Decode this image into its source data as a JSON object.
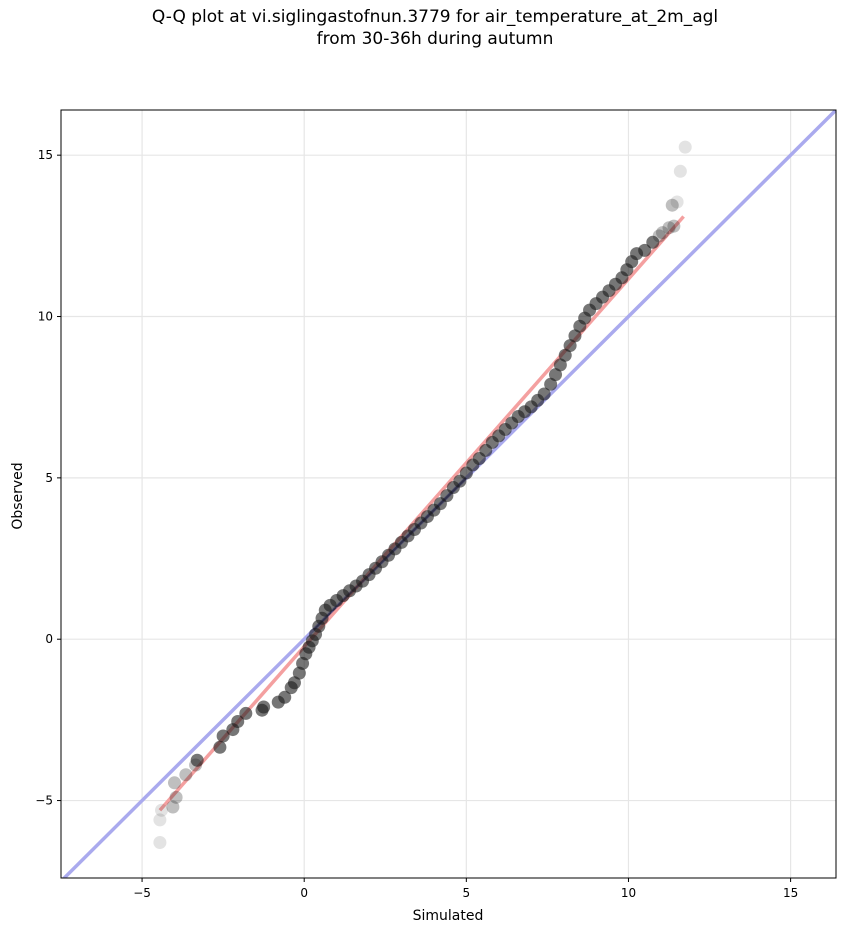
{
  "chart_data": {
    "type": "scatter",
    "title_line1": "Q-Q plot at vi.siglingastofnun.3779 for air_temperature_at_2m_agl",
    "title_line2": "from 30-36h during autumn",
    "xlabel": "Simulated",
    "ylabel": "Observed",
    "xlim": [
      -7.5,
      16.4
    ],
    "ylim": [
      -7.4,
      16.4
    ],
    "xticks": [
      -5,
      0,
      5,
      10,
      15
    ],
    "yticks": [
      -5,
      0,
      5,
      10,
      15
    ],
    "xtick_labels": [
      "−5",
      "0",
      "5",
      "10",
      "15"
    ],
    "ytick_labels": [
      "−5",
      "0",
      "5",
      "10",
      "15"
    ],
    "grid": true,
    "colors": {
      "points": "#1a1a1a",
      "identity_line": "#aaaaee",
      "fit_line": "#f4a0a0",
      "dense_core": "#1a1a5a"
    },
    "identity_line": {
      "name": "identity",
      "x": [
        -7.5,
        16.4
      ],
      "y": [
        -7.5,
        16.4
      ]
    },
    "fit_line": {
      "name": "fit",
      "x": [
        -4.45,
        11.7
      ],
      "y": [
        -5.3,
        13.1
      ]
    },
    "points": [
      [
        -4.45,
        -6.3
      ],
      [
        -4.45,
        -5.6
      ],
      [
        -4.4,
        -5.3
      ],
      [
        -4.05,
        -5.2
      ],
      [
        -3.95,
        -4.9
      ],
      [
        -4.0,
        -4.45
      ],
      [
        -3.65,
        -4.2
      ],
      [
        -3.35,
        -3.9
      ],
      [
        -3.3,
        -3.75
      ],
      [
        -2.6,
        -3.35
      ],
      [
        -2.5,
        -3.0
      ],
      [
        -2.2,
        -2.8
      ],
      [
        -2.05,
        -2.55
      ],
      [
        -1.8,
        -2.3
      ],
      [
        -1.3,
        -2.2
      ],
      [
        -1.25,
        -2.1
      ],
      [
        -0.8,
        -1.95
      ],
      [
        -0.6,
        -1.8
      ],
      [
        -0.4,
        -1.5
      ],
      [
        -0.3,
        -1.35
      ],
      [
        -0.15,
        -1.05
      ],
      [
        -0.05,
        -0.75
      ],
      [
        0.05,
        -0.45
      ],
      [
        0.15,
        -0.25
      ],
      [
        0.25,
        -0.05
      ],
      [
        0.35,
        0.15
      ],
      [
        0.45,
        0.4
      ],
      [
        0.55,
        0.65
      ],
      [
        0.65,
        0.9
      ],
      [
        0.8,
        1.05
      ],
      [
        1.0,
        1.2
      ],
      [
        1.2,
        1.35
      ],
      [
        1.4,
        1.5
      ],
      [
        1.6,
        1.65
      ],
      [
        1.8,
        1.8
      ],
      [
        2.0,
        2.0
      ],
      [
        2.2,
        2.2
      ],
      [
        2.4,
        2.4
      ],
      [
        2.6,
        2.6
      ],
      [
        2.8,
        2.8
      ],
      [
        3.0,
        3.0
      ],
      [
        3.2,
        3.2
      ],
      [
        3.4,
        3.4
      ],
      [
        3.6,
        3.6
      ],
      [
        3.8,
        3.8
      ],
      [
        4.0,
        4.0
      ],
      [
        4.2,
        4.2
      ],
      [
        4.4,
        4.45
      ],
      [
        4.6,
        4.7
      ],
      [
        4.8,
        4.9
      ],
      [
        5.0,
        5.15
      ],
      [
        5.2,
        5.4
      ],
      [
        5.4,
        5.6
      ],
      [
        5.6,
        5.85
      ],
      [
        5.8,
        6.1
      ],
      [
        6.0,
        6.3
      ],
      [
        6.2,
        6.5
      ],
      [
        6.4,
        6.7
      ],
      [
        6.6,
        6.9
      ],
      [
        6.8,
        7.05
      ],
      [
        7.0,
        7.2
      ],
      [
        7.2,
        7.4
      ],
      [
        7.4,
        7.6
      ],
      [
        7.6,
        7.9
      ],
      [
        7.75,
        8.2
      ],
      [
        7.9,
        8.5
      ],
      [
        8.05,
        8.8
      ],
      [
        8.2,
        9.1
      ],
      [
        8.35,
        9.4
      ],
      [
        8.5,
        9.7
      ],
      [
        8.65,
        9.95
      ],
      [
        8.8,
        10.2
      ],
      [
        9.0,
        10.4
      ],
      [
        9.2,
        10.6
      ],
      [
        9.4,
        10.8
      ],
      [
        9.6,
        11.0
      ],
      [
        9.8,
        11.2
      ],
      [
        9.95,
        11.45
      ],
      [
        10.1,
        11.7
      ],
      [
        10.25,
        11.95
      ],
      [
        10.5,
        12.05
      ],
      [
        10.75,
        12.3
      ],
      [
        10.95,
        12.5
      ],
      [
        11.05,
        12.6
      ],
      [
        11.25,
        12.75
      ],
      [
        11.4,
        12.8
      ],
      [
        11.35,
        13.45
      ],
      [
        11.5,
        13.55
      ],
      [
        11.6,
        14.5
      ],
      [
        11.75,
        15.25
      ]
    ]
  }
}
